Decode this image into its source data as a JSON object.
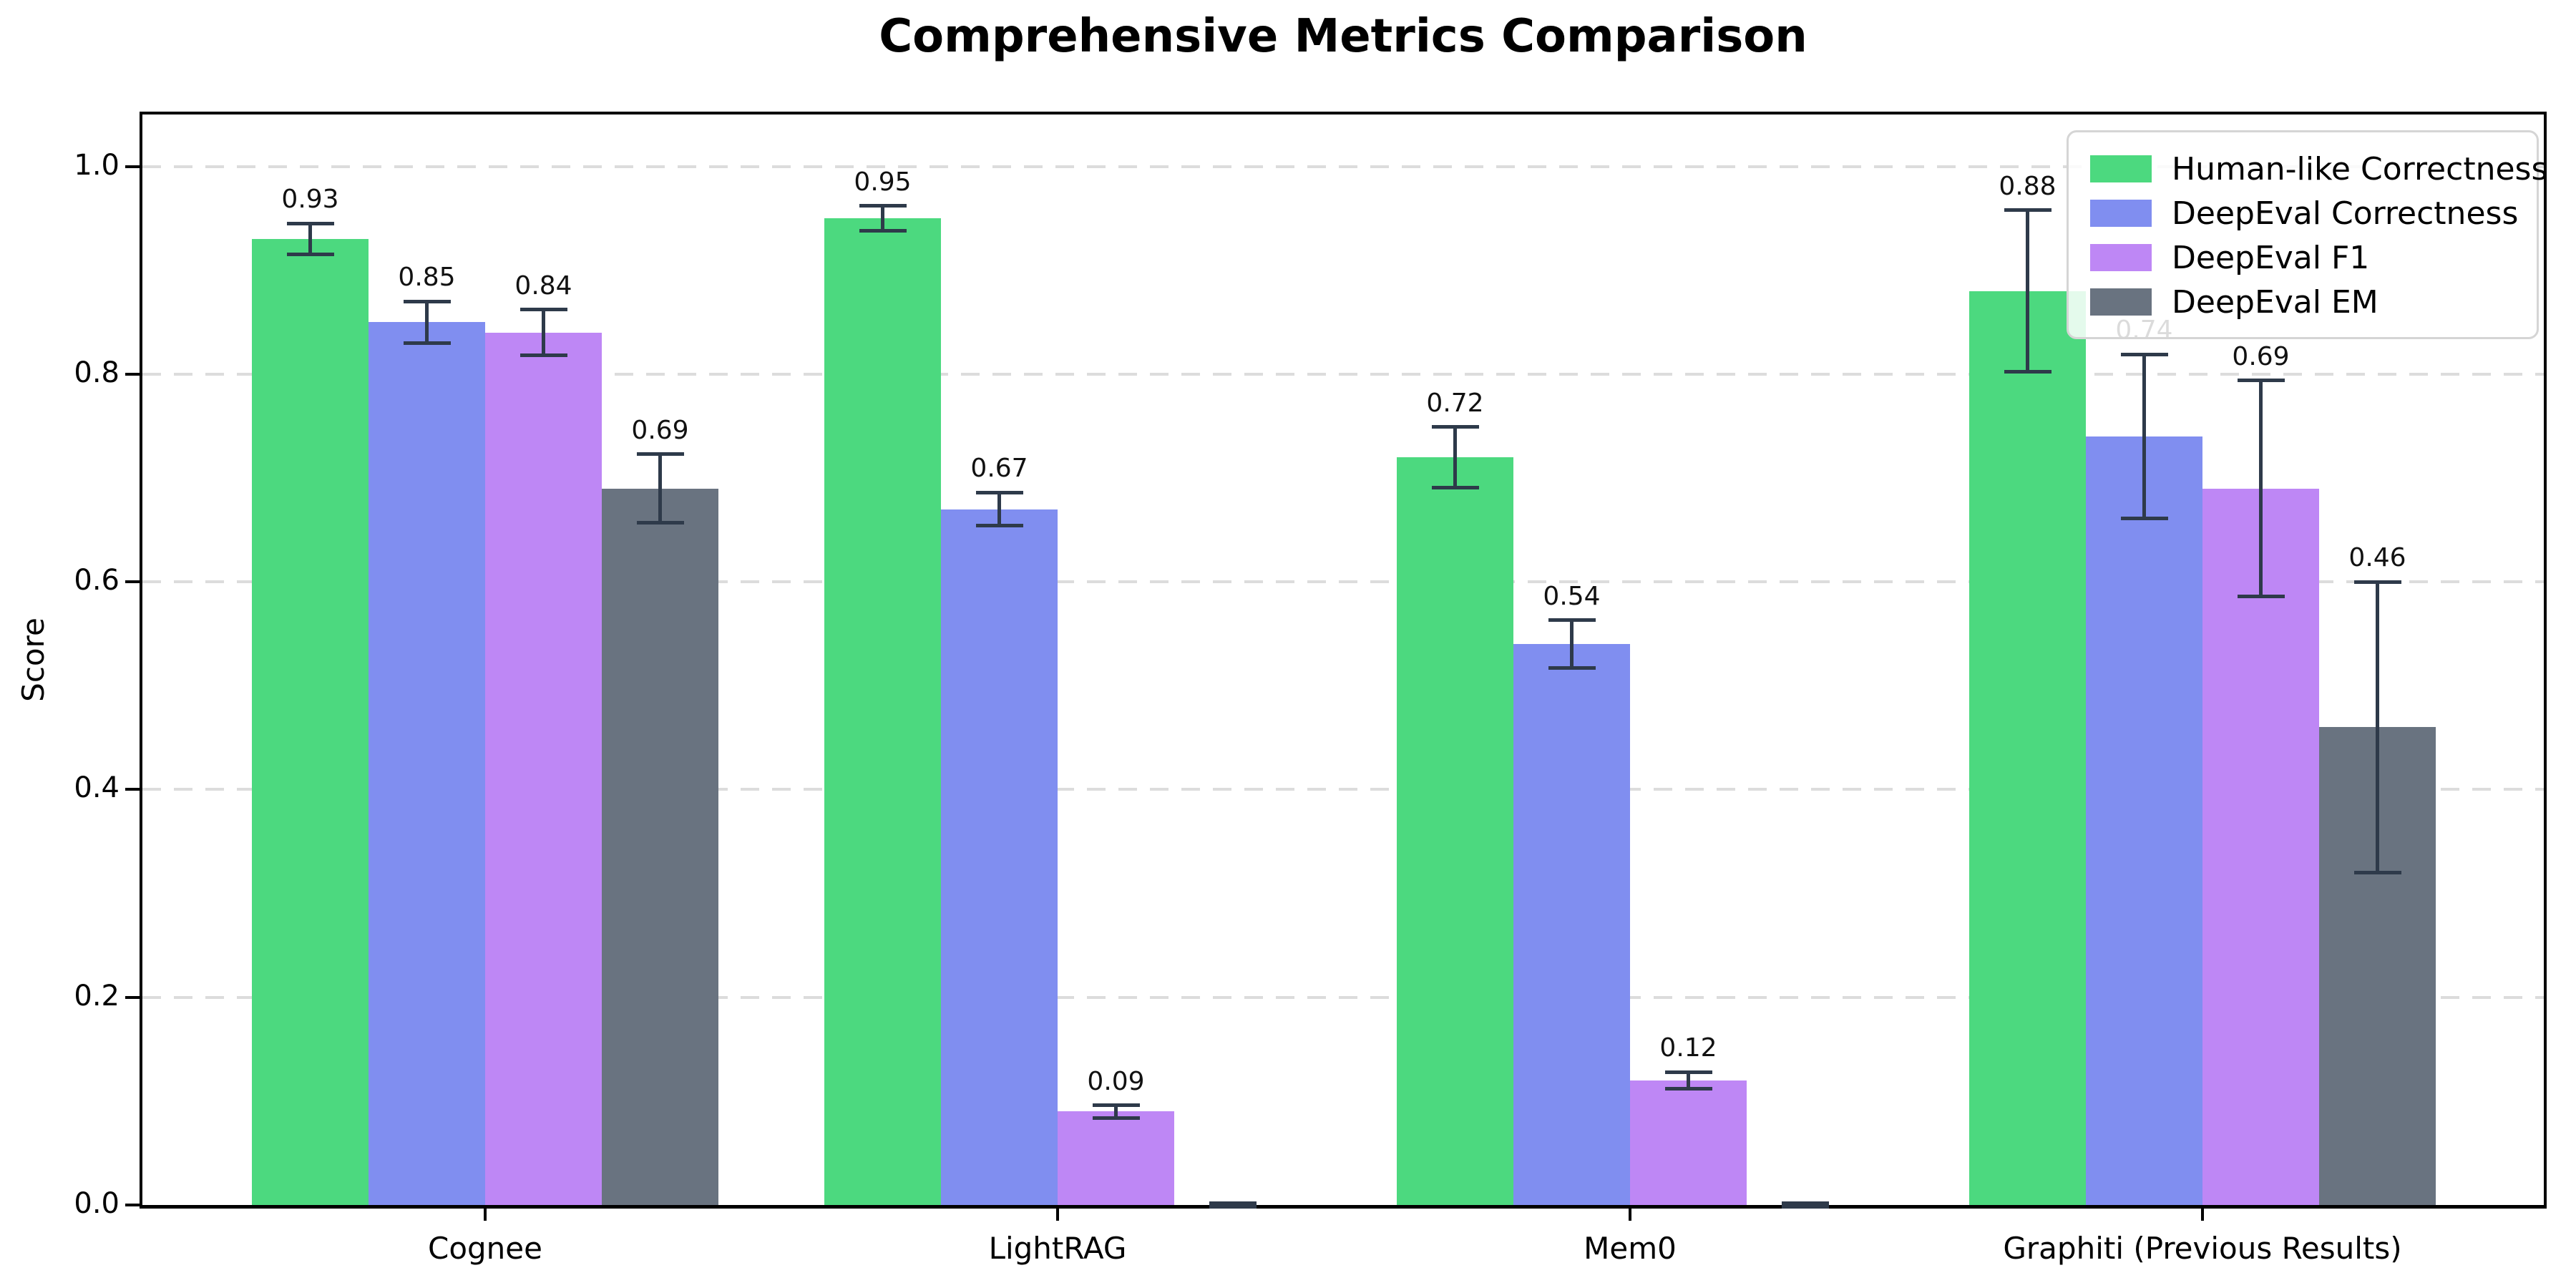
{
  "chart_data": {
    "type": "bar",
    "title": "Comprehensive Metrics Comparison",
    "xlabel": "",
    "ylabel": "Score",
    "ylim": [
      0,
      1.05
    ],
    "yticks": [
      0.0,
      0.2,
      0.4,
      0.6,
      0.8,
      1.0
    ],
    "ytick_labels": [
      "0.0",
      "0.2",
      "0.4",
      "0.6",
      "0.8",
      "1.0"
    ],
    "grid": "horizontal-dashed",
    "legend_position": "upper-right",
    "categories": [
      "Cognee",
      "LightRAG",
      "Mem0",
      "Graphiti (Previous Results)"
    ],
    "series": [
      {
        "name": "Human-like Correctness",
        "color": "#4cd97f",
        "values": [
          0.93,
          0.95,
          0.72,
          0.88
        ],
        "errors": [
          0.015,
          0.012,
          0.029,
          0.078
        ],
        "value_labels": [
          "0.93",
          "0.95",
          "0.72",
          "0.88"
        ]
      },
      {
        "name": "DeepEval Correctness",
        "color": "#808ef0",
        "values": [
          0.85,
          0.67,
          0.54,
          0.74
        ],
        "errors": [
          0.02,
          0.016,
          0.023,
          0.079
        ],
        "value_labels": [
          "0.85",
          "0.67",
          "0.54",
          "0.74"
        ]
      },
      {
        "name": "DeepEval F1",
        "color": "#be87f5",
        "values": [
          0.84,
          0.09,
          0.12,
          0.69
        ],
        "errors": [
          0.022,
          0.006,
          0.008,
          0.104
        ],
        "value_labels": [
          "0.84",
          "0.09",
          "0.12",
          "0.69"
        ]
      },
      {
        "name": "DeepEval EM",
        "color": "#697380",
        "values": [
          0.69,
          0.0,
          0.0,
          0.46
        ],
        "errors": [
          0.033,
          0.002,
          0.002,
          0.14
        ],
        "value_labels": [
          "0.69",
          null,
          null,
          "0.46"
        ]
      }
    ],
    "colors": {
      "error_bar": "#2e3a4a",
      "grid": "#dcdcdc",
      "axis": "#000000",
      "legend_border": "#d5d5d5",
      "value_label": "#111111"
    }
  }
}
